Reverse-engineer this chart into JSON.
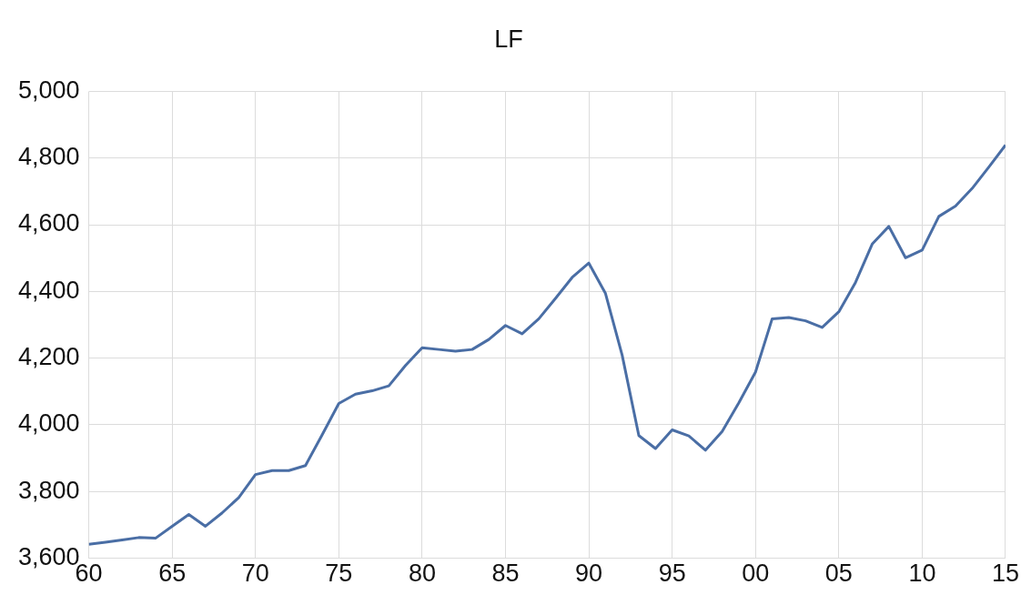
{
  "chart_data": {
    "type": "line",
    "title": "LF",
    "x": [
      1960,
      1961,
      1962,
      1963,
      1964,
      1965,
      1966,
      1967,
      1968,
      1969,
      1970,
      1971,
      1972,
      1973,
      1974,
      1975,
      1976,
      1977,
      1978,
      1979,
      1980,
      1981,
      1982,
      1983,
      1984,
      1985,
      1986,
      1987,
      1988,
      1989,
      1990,
      1991,
      1992,
      1993,
      1994,
      1995,
      1996,
      1997,
      1998,
      1999,
      2000,
      2001,
      2002,
      2003,
      2004,
      2005,
      2006,
      2007,
      2008,
      2009,
      2010,
      2011,
      2012,
      2013,
      2014,
      2015
    ],
    "series": [
      {
        "color": "#4a6ea5",
        "values": [
          3642,
          3648,
          3655,
          3662,
          3660,
          3696,
          3731,
          3696,
          3736,
          3782,
          3851,
          3863,
          3863,
          3878,
          3970,
          4064,
          4092,
          4102,
          4117,
          4178,
          4231,
          4226,
          4221,
          4226,
          4256,
          4298,
          4273,
          4318,
          4379,
          4442,
          4485,
          4394,
          4209,
          3968,
          3929,
          3985,
          3967,
          3924,
          3980,
          4066,
          4158,
          4318,
          4322,
          4312,
          4292,
          4339,
          4427,
          4542,
          4595,
          4501,
          4524,
          4625,
          4656,
          4709,
          4773,
          4839
        ]
      }
    ],
    "xlim": [
      1960,
      2015
    ],
    "xticks": [
      {
        "value": 1960,
        "label": "60"
      },
      {
        "value": 1965,
        "label": "65"
      },
      {
        "value": 1970,
        "label": "70"
      },
      {
        "value": 1975,
        "label": "75"
      },
      {
        "value": 1980,
        "label": "80"
      },
      {
        "value": 1985,
        "label": "85"
      },
      {
        "value": 1990,
        "label": "90"
      },
      {
        "value": 1995,
        "label": "95"
      },
      {
        "value": 2000,
        "label": "00"
      },
      {
        "value": 2005,
        "label": "05"
      },
      {
        "value": 2010,
        "label": "10"
      },
      {
        "value": 2015,
        "label": "15"
      }
    ],
    "ylim": [
      3600,
      5000
    ],
    "yticks": [
      {
        "value": 3600,
        "label": "3,600"
      },
      {
        "value": 3800,
        "label": "3,800"
      },
      {
        "value": 4000,
        "label": "4,000"
      },
      {
        "value": 4200,
        "label": "4,200"
      },
      {
        "value": 4400,
        "label": "4,400"
      },
      {
        "value": 4600,
        "label": "4,600"
      },
      {
        "value": 4800,
        "label": "4,800"
      },
      {
        "value": 5000,
        "label": "5,000"
      }
    ],
    "grid": true,
    "legend": false,
    "marker": "none",
    "line_style": "solid"
  }
}
